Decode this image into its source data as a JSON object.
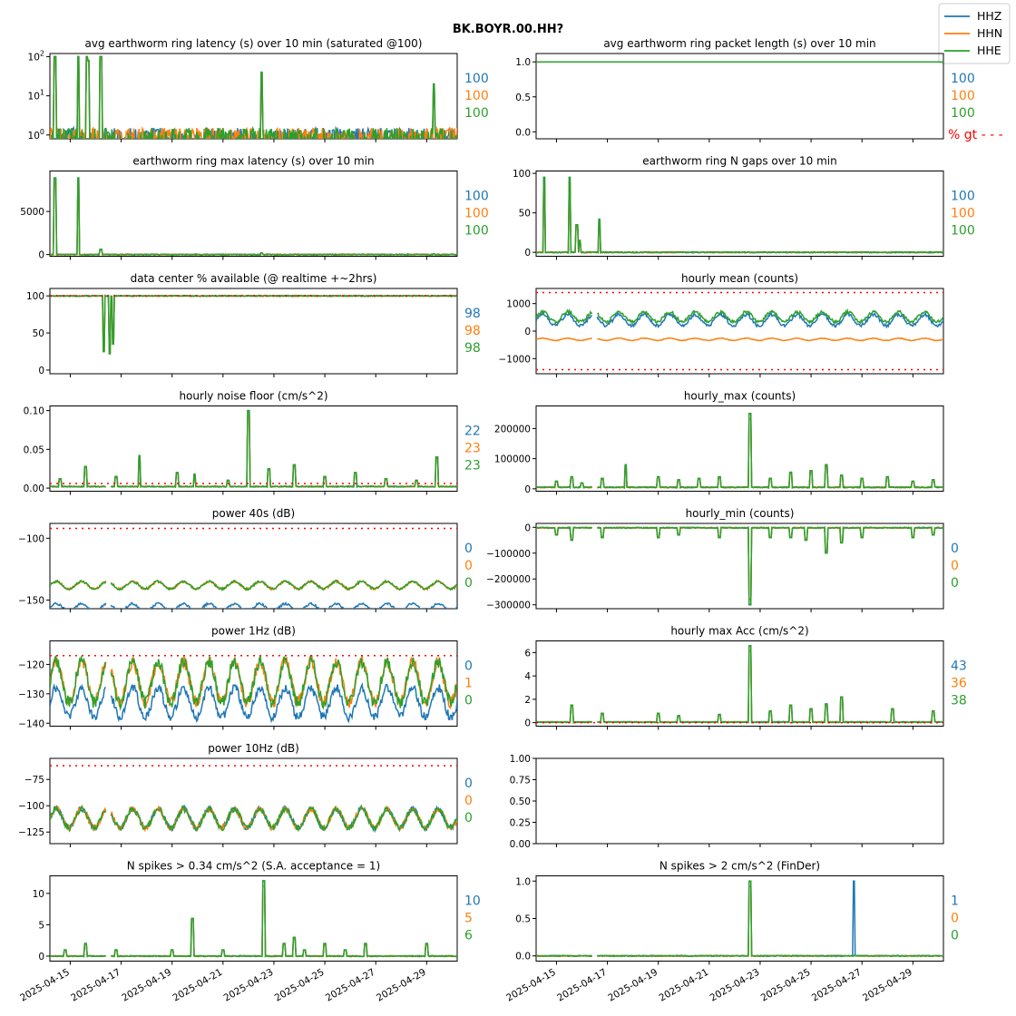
{
  "figure": {
    "suptitle": "BK.BOYR.00.HH?",
    "gt_label": "% gt - - -",
    "gt_color": "#ff0000",
    "colors": {
      "HHZ": "#1f77b4",
      "HHN": "#ff7f0e",
      "HHE": "#2ca02c"
    },
    "legend": [
      "HHZ",
      "HHN",
      "HHE"
    ],
    "date_ticks": [
      "2025-04-15",
      "2025-04-17",
      "2025-04-19",
      "2025-04-21",
      "2025-04-23",
      "2025-04-25",
      "2025-04-27",
      "2025-04-29"
    ]
  },
  "chart_data": [
    {
      "type": "line",
      "title": "avg earthworm ring latency (s)   over 10 min (saturated @100)",
      "scale": "log",
      "ylim": [
        0.8,
        120
      ],
      "yticks": [
        {
          "v": 1,
          "b": "10",
          "e": "0"
        },
        {
          "v": 10,
          "b": "10",
          "e": "1"
        },
        {
          "v": 100,
          "b": "10",
          "e": "2"
        }
      ],
      "percent_available": [
        100,
        100,
        100
      ],
      "baseline": 0.8,
      "spikes": [
        [
          0.5,
          100
        ],
        [
          2.8,
          100
        ],
        [
          3.6,
          100
        ],
        [
          3.8,
          80
        ],
        [
          5.0,
          100
        ],
        [
          9.8,
          1.1
        ],
        [
          20.8,
          40
        ],
        [
          37.7,
          20
        ]
      ]
    },
    {
      "type": "line",
      "title": "avg earthworm ring packet length (s)   over 10 min",
      "ylim": [
        -0.1,
        1.12
      ],
      "yticks": [
        {
          "v": 0.0,
          "l": "0.0"
        },
        {
          "v": 0.5,
          "l": "0.5"
        },
        {
          "v": 1.0,
          "l": "1.0"
        }
      ],
      "percent_available": [
        100,
        100,
        100
      ],
      "constant": 1.0,
      "show_gt": true
    },
    {
      "type": "line",
      "title": "earthworm ring max latency (s)   over 10 min",
      "ylim": [
        -200,
        9700
      ],
      "yticks": [
        {
          "v": 0,
          "l": "0"
        },
        {
          "v": 5000,
          "l": "5000"
        }
      ],
      "percent_available": [
        100,
        100,
        100
      ],
      "baseline": 0,
      "spikes": [
        [
          0.5,
          8900
        ],
        [
          2.8,
          8900
        ],
        [
          5.0,
          600
        ],
        [
          20.8,
          200
        ],
        [
          37.7,
          100
        ]
      ]
    },
    {
      "type": "line",
      "title": "earthworm ring N gaps   over 10 min",
      "ylim": [
        -5,
        103
      ],
      "yticks": [
        {
          "v": 0,
          "l": "0"
        },
        {
          "v": 50,
          "l": "50"
        },
        {
          "v": 100,
          "l": "100"
        }
      ],
      "percent_available": [
        100,
        100,
        100
      ],
      "baseline": 0,
      "spikes": [
        [
          0.8,
          95
        ],
        [
          3.3,
          95
        ],
        [
          4.0,
          35
        ],
        [
          4.3,
          15
        ],
        [
          6.2,
          42
        ]
      ]
    },
    {
      "type": "line",
      "title": "data center % available (@ realtime +~2hrs)",
      "ylim": [
        -5,
        110
      ],
      "yticks": [
        {
          "v": 0,
          "l": "0"
        },
        {
          "v": 50,
          "l": "50"
        },
        {
          "v": 100,
          "l": "100"
        }
      ],
      "percent_available": [
        98,
        98,
        98
      ],
      "threshold": 100,
      "baseline": 100,
      "dips": [
        [
          5.3,
          25
        ],
        [
          5.9,
          22
        ],
        [
          6.2,
          35
        ]
      ]
    },
    {
      "type": "line",
      "title": "hourly mean (counts)",
      "ylim": [
        -1550,
        1550
      ],
      "yticks": [
        {
          "v": -1000,
          "l": "−1000"
        },
        {
          "v": 0,
          "l": "0"
        },
        {
          "v": 1000,
          "l": "1000"
        }
      ],
      "thresholds": [
        1400,
        -1400
      ],
      "gap": [
        5.5,
        6.0
      ],
      "series": [
        {
          "name": "HHZ",
          "base": 400,
          "amp": 200
        },
        {
          "name": "HHN",
          "base": -300,
          "amp": 40
        },
        {
          "name": "HHE",
          "base": 520,
          "amp": 180
        }
      ]
    },
    {
      "type": "line",
      "title": "hourly noise floor (cm/s^2)",
      "ylim": [
        -0.004,
        0.106
      ],
      "yticks": [
        {
          "v": 0.0,
          "l": "0.00"
        },
        {
          "v": 0.05,
          "l": "0.05"
        },
        {
          "v": 0.1,
          "l": "0.10"
        }
      ],
      "percent_available": [
        22,
        23,
        23
      ],
      "threshold": 0.006,
      "baseline": 0.002,
      "gap": [
        5.5,
        6.0
      ],
      "spikes": [
        [
          1.0,
          0.012
        ],
        [
          3.5,
          0.028
        ],
        [
          6.5,
          0.015
        ],
        [
          8.8,
          0.042
        ],
        [
          12.5,
          0.02
        ],
        [
          14.2,
          0.018
        ],
        [
          17.5,
          0.01
        ],
        [
          19.5,
          0.1
        ],
        [
          21.5,
          0.025
        ],
        [
          24.0,
          0.03
        ],
        [
          27.0,
          0.015
        ],
        [
          30.0,
          0.02
        ],
        [
          33.0,
          0.012
        ],
        [
          36.0,
          0.01
        ],
        [
          38.0,
          0.04
        ]
      ]
    },
    {
      "type": "line",
      "title": "hourly_max (counts)",
      "ylim": [
        -8000,
        275000
      ],
      "yticks": [
        {
          "v": 0,
          "l": "0"
        },
        {
          "v": 100000,
          "l": "100000"
        },
        {
          "v": 200000,
          "l": "200000"
        }
      ],
      "baseline": 5000,
      "gap": [
        5.5,
        6.0
      ],
      "spikes": [
        [
          2.0,
          25000
        ],
        [
          3.5,
          40000
        ],
        [
          4.5,
          20000
        ],
        [
          6.5,
          35000
        ],
        [
          8.8,
          80000
        ],
        [
          12.0,
          40000
        ],
        [
          14.0,
          30000
        ],
        [
          16.0,
          35000
        ],
        [
          18.0,
          40000
        ],
        [
          21.0,
          250000
        ],
        [
          23.0,
          35000
        ],
        [
          25.0,
          55000
        ],
        [
          27.0,
          60000
        ],
        [
          28.5,
          80000
        ],
        [
          30.0,
          45000
        ],
        [
          32.0,
          35000
        ],
        [
          34.5,
          40000
        ],
        [
          37.0,
          25000
        ],
        [
          39.0,
          30000
        ]
      ]
    },
    {
      "type": "line",
      "title": "power 40s (dB)",
      "ylim": [
        -157,
        -88
      ],
      "yticks": [
        {
          "v": -150,
          "l": "−150"
        },
        {
          "v": -100,
          "l": "−100"
        }
      ],
      "percent_available": [
        0,
        0,
        0
      ],
      "threshold": -92,
      "gap": [
        5.5,
        6.0
      ],
      "series": [
        {
          "name": "HHZ",
          "base": -156,
          "amp": 3
        },
        {
          "name": "HHN",
          "base": -138,
          "amp": 3
        },
        {
          "name": "HHE",
          "base": -138,
          "amp": 3
        }
      ]
    },
    {
      "type": "line",
      "title": "hourly_min (counts)",
      "ylim": [
        -315000,
        15000
      ],
      "yticks": [
        {
          "v": -300000,
          "l": "−300000"
        },
        {
          "v": -200000,
          "l": "−200000"
        },
        {
          "v": -100000,
          "l": "−100000"
        },
        {
          "v": 0,
          "l": "0"
        }
      ],
      "percent_available": [
        0,
        0,
        0
      ],
      "baseline": -2000,
      "gap": [
        5.5,
        6.0
      ],
      "spikes": [
        [
          2.0,
          -30000
        ],
        [
          3.5,
          -50000
        ],
        [
          6.5,
          -40000
        ],
        [
          12.0,
          -40000
        ],
        [
          14.0,
          -30000
        ],
        [
          18.0,
          -40000
        ],
        [
          21.0,
          -300000
        ],
        [
          23.0,
          -40000
        ],
        [
          25.0,
          -40000
        ],
        [
          26.5,
          -50000
        ],
        [
          28.5,
          -100000
        ],
        [
          30.0,
          -60000
        ],
        [
          32.0,
          -40000
        ],
        [
          37.0,
          -40000
        ],
        [
          39.0,
          -30000
        ]
      ]
    },
    {
      "type": "line",
      "title": "power 1Hz (dB)",
      "ylim": [
        -141,
        -112
      ],
      "yticks": [
        {
          "v": -140,
          "l": "−140"
        },
        {
          "v": -130,
          "l": "−130"
        },
        {
          "v": -120,
          "l": "−120"
        }
      ],
      "percent_available": [
        0,
        1,
        0
      ],
      "threshold": -117,
      "gap": [
        5.5,
        6.0
      ],
      "series": [
        {
          "name": "HHZ",
          "base": -133,
          "amp": 5
        },
        {
          "name": "HHN",
          "base": -126,
          "amp": 7
        },
        {
          "name": "HHE",
          "base": -126,
          "amp": 7
        }
      ]
    },
    {
      "type": "line",
      "title": "hourly max Acc (cm/s^2)",
      "ylim": [
        -0.3,
        7.0
      ],
      "yticks": [
        {
          "v": 0,
          "l": "0"
        },
        {
          "v": 2,
          "l": "2"
        },
        {
          "v": 4,
          "l": "4"
        },
        {
          "v": 6,
          "l": "6"
        }
      ],
      "percent_available": [
        43,
        36,
        38
      ],
      "threshold": 0.0,
      "baseline": 0.05,
      "gap": [
        5.5,
        6.0
      ],
      "spikes": [
        [
          3.5,
          1.5
        ],
        [
          6.5,
          0.8
        ],
        [
          12.0,
          0.8
        ],
        [
          14.0,
          0.6
        ],
        [
          18.0,
          0.7
        ],
        [
          21.0,
          6.6
        ],
        [
          23.0,
          1.0
        ],
        [
          25.0,
          1.5
        ],
        [
          27.0,
          1.2
        ],
        [
          28.5,
          1.6
        ],
        [
          30.0,
          2.2
        ],
        [
          35.0,
          1.2
        ],
        [
          39.0,
          1.0
        ]
      ]
    },
    {
      "type": "line",
      "title": "power 10Hz (dB)",
      "ylim": [
        -136,
        -55
      ],
      "yticks": [
        {
          "v": -125,
          "l": "−125"
        },
        {
          "v": -100,
          "l": "−100"
        },
        {
          "v": -75,
          "l": "−75"
        }
      ],
      "percent_available": [
        0,
        0,
        0
      ],
      "threshold": -62,
      "gap": [
        5.5,
        6.0
      ],
      "series": [
        {
          "name": "HHZ",
          "base": -112,
          "amp": 9
        },
        {
          "name": "HHN",
          "base": -112,
          "amp": 9
        },
        {
          "name": "HHE",
          "base": -112,
          "amp": 9
        }
      ]
    },
    {
      "type": "empty",
      "title": "",
      "ylim": [
        0,
        1
      ],
      "yticks": [
        {
          "v": 0.0,
          "l": "0.00"
        },
        {
          "v": 0.25,
          "l": "0.25"
        },
        {
          "v": 0.5,
          "l": "0.50"
        },
        {
          "v": 0.75,
          "l": "0.75"
        },
        {
          "v": 1.0,
          "l": "1.00"
        }
      ]
    },
    {
      "type": "line",
      "title": "N spikes > 0.34 cm/s^2 (S.A. acceptance = 1)",
      "ylim": [
        -0.8,
        12.8
      ],
      "yticks": [
        {
          "v": 0,
          "l": "0"
        },
        {
          "v": 5,
          "l": "5"
        },
        {
          "v": 10,
          "l": "10"
        }
      ],
      "percent_available": [
        10,
        5,
        6
      ],
      "baseline": 0,
      "gap": [
        5.5,
        6.0
      ],
      "spikes": [
        [
          1.5,
          1
        ],
        [
          3.5,
          2
        ],
        [
          6.5,
          1
        ],
        [
          12.0,
          1
        ],
        [
          14.0,
          6
        ],
        [
          17.0,
          1
        ],
        [
          21.0,
          12
        ],
        [
          23.0,
          2
        ],
        [
          24.0,
          3
        ],
        [
          25.0,
          1
        ],
        [
          27.0,
          2
        ],
        [
          29.0,
          1
        ],
        [
          31.0,
          2
        ],
        [
          37.0,
          2
        ]
      ]
    },
    {
      "type": "line",
      "title": "N spikes > 2 cm/s^2 (FinDer)",
      "ylim": [
        -0.07,
        1.07
      ],
      "yticks": [
        {
          "v": 0.0,
          "l": "0.0"
        },
        {
          "v": 0.5,
          "l": "0.5"
        },
        {
          "v": 1.0,
          "l": "1.0"
        }
      ],
      "percent_available": [
        1,
        0,
        0
      ],
      "baseline": 0,
      "gap": [
        5.5,
        6.0
      ],
      "spikes": [
        [
          21.0,
          1
        ]
      ],
      "hhz_only_spikes": [
        [
          31.2,
          1
        ]
      ]
    }
  ]
}
